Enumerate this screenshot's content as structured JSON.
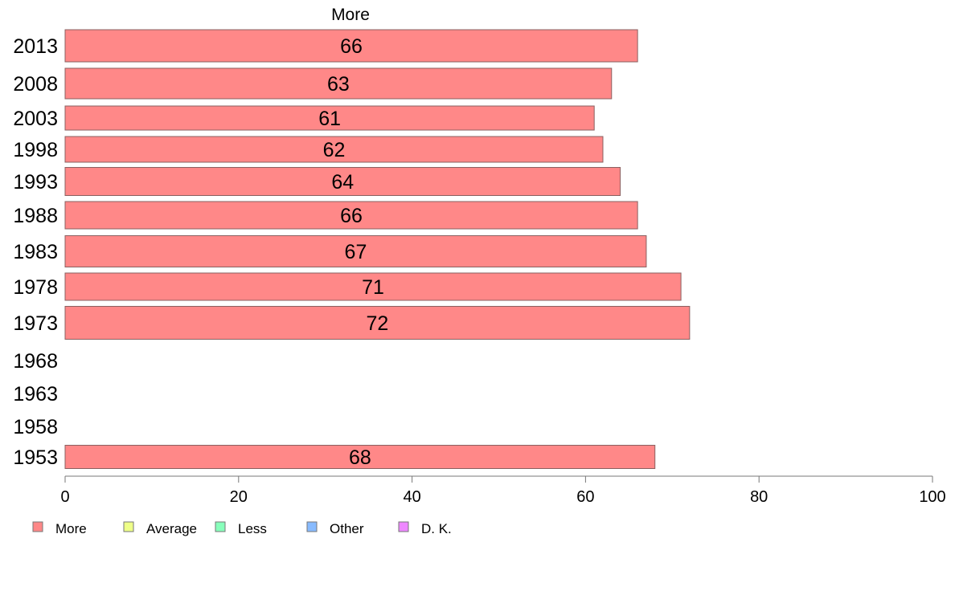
{
  "chart_data": {
    "type": "bar",
    "orientation": "horizontal",
    "title": "More",
    "categories": [
      "2013",
      "2008",
      "2003",
      "1998",
      "1993",
      "1988",
      "1983",
      "1978",
      "1973",
      "1968",
      "1963",
      "1958",
      "1953"
    ],
    "series": [
      {
        "name": "More",
        "color": "#ff8888",
        "values": [
          66,
          63,
          61,
          62,
          64,
          66,
          67,
          71,
          72,
          null,
          null,
          null,
          68
        ]
      }
    ],
    "xlim": [
      0,
      100
    ],
    "xticks": [
      0,
      20,
      40,
      60,
      80,
      100
    ],
    "grid": false,
    "legend": {
      "placement": "bottom-left",
      "entries": [
        {
          "name": "More",
          "color": "#ff8888"
        },
        {
          "name": "Average",
          "color": "#eeff88"
        },
        {
          "name": "Less",
          "color": "#88ffbb"
        },
        {
          "name": "Other",
          "color": "#88bbff"
        },
        {
          "name": "D. K.",
          "color": "#ee88ff"
        }
      ]
    }
  }
}
